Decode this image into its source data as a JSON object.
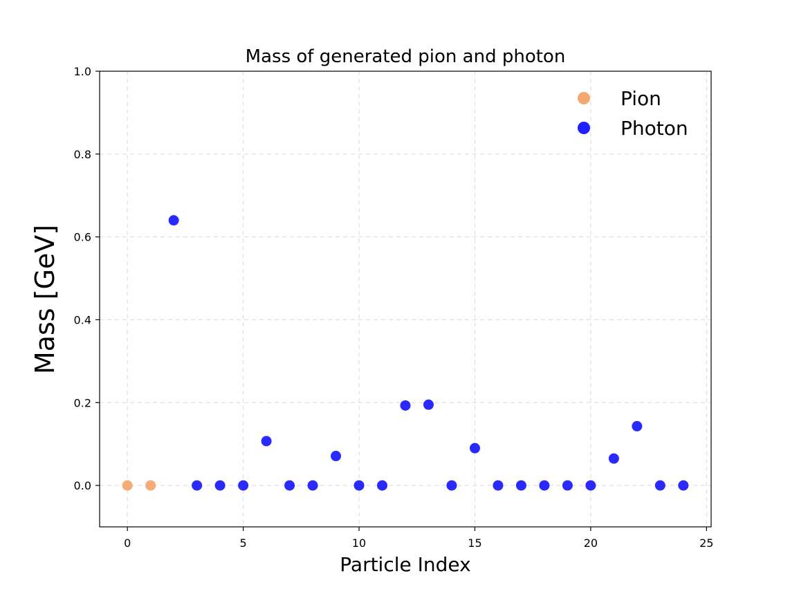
{
  "chart_data": {
    "type": "scatter",
    "title": "Mass of generated pion and photon",
    "xlabel": "Particle Index",
    "ylabel": "Mass [GeV]",
    "xlim": [
      -1.2,
      25.2
    ],
    "ylim": [
      -0.1,
      1.0
    ],
    "xticks": [
      0,
      5,
      10,
      15,
      20,
      25
    ],
    "yticks": [
      0.0,
      0.2,
      0.4,
      0.6,
      0.8,
      1.0
    ],
    "ytick_labels": [
      "0.0",
      "0.2",
      "0.4",
      "0.6",
      "0.8",
      "1.0"
    ],
    "grid": true,
    "legend_position": "top-right",
    "series": [
      {
        "name": "Pion",
        "color": "#F4A86F",
        "points": [
          {
            "x": 0,
            "y": 0.0
          },
          {
            "x": 1,
            "y": 0.0
          }
        ]
      },
      {
        "name": "Photon",
        "color": "#1F1FFF",
        "points": [
          {
            "x": 2,
            "y": 0.64
          },
          {
            "x": 3,
            "y": 0.0
          },
          {
            "x": 4,
            "y": 0.0
          },
          {
            "x": 5,
            "y": 0.0
          },
          {
            "x": 6,
            "y": 0.107
          },
          {
            "x": 7,
            "y": 0.0
          },
          {
            "x": 8,
            "y": 0.0
          },
          {
            "x": 9,
            "y": 0.071
          },
          {
            "x": 10,
            "y": 0.0
          },
          {
            "x": 11,
            "y": 0.0
          },
          {
            "x": 12,
            "y": 0.193
          },
          {
            "x": 13,
            "y": 0.195
          },
          {
            "x": 14,
            "y": 0.0
          },
          {
            "x": 15,
            "y": 0.09
          },
          {
            "x": 16,
            "y": 0.0
          },
          {
            "x": 17,
            "y": 0.0
          },
          {
            "x": 18,
            "y": 0.0
          },
          {
            "x": 19,
            "y": 0.0
          },
          {
            "x": 20,
            "y": 0.0
          },
          {
            "x": 21,
            "y": 0.065
          },
          {
            "x": 22,
            "y": 0.143
          },
          {
            "x": 23,
            "y": 0.0
          },
          {
            "x": 24,
            "y": 0.0
          }
        ]
      }
    ]
  }
}
